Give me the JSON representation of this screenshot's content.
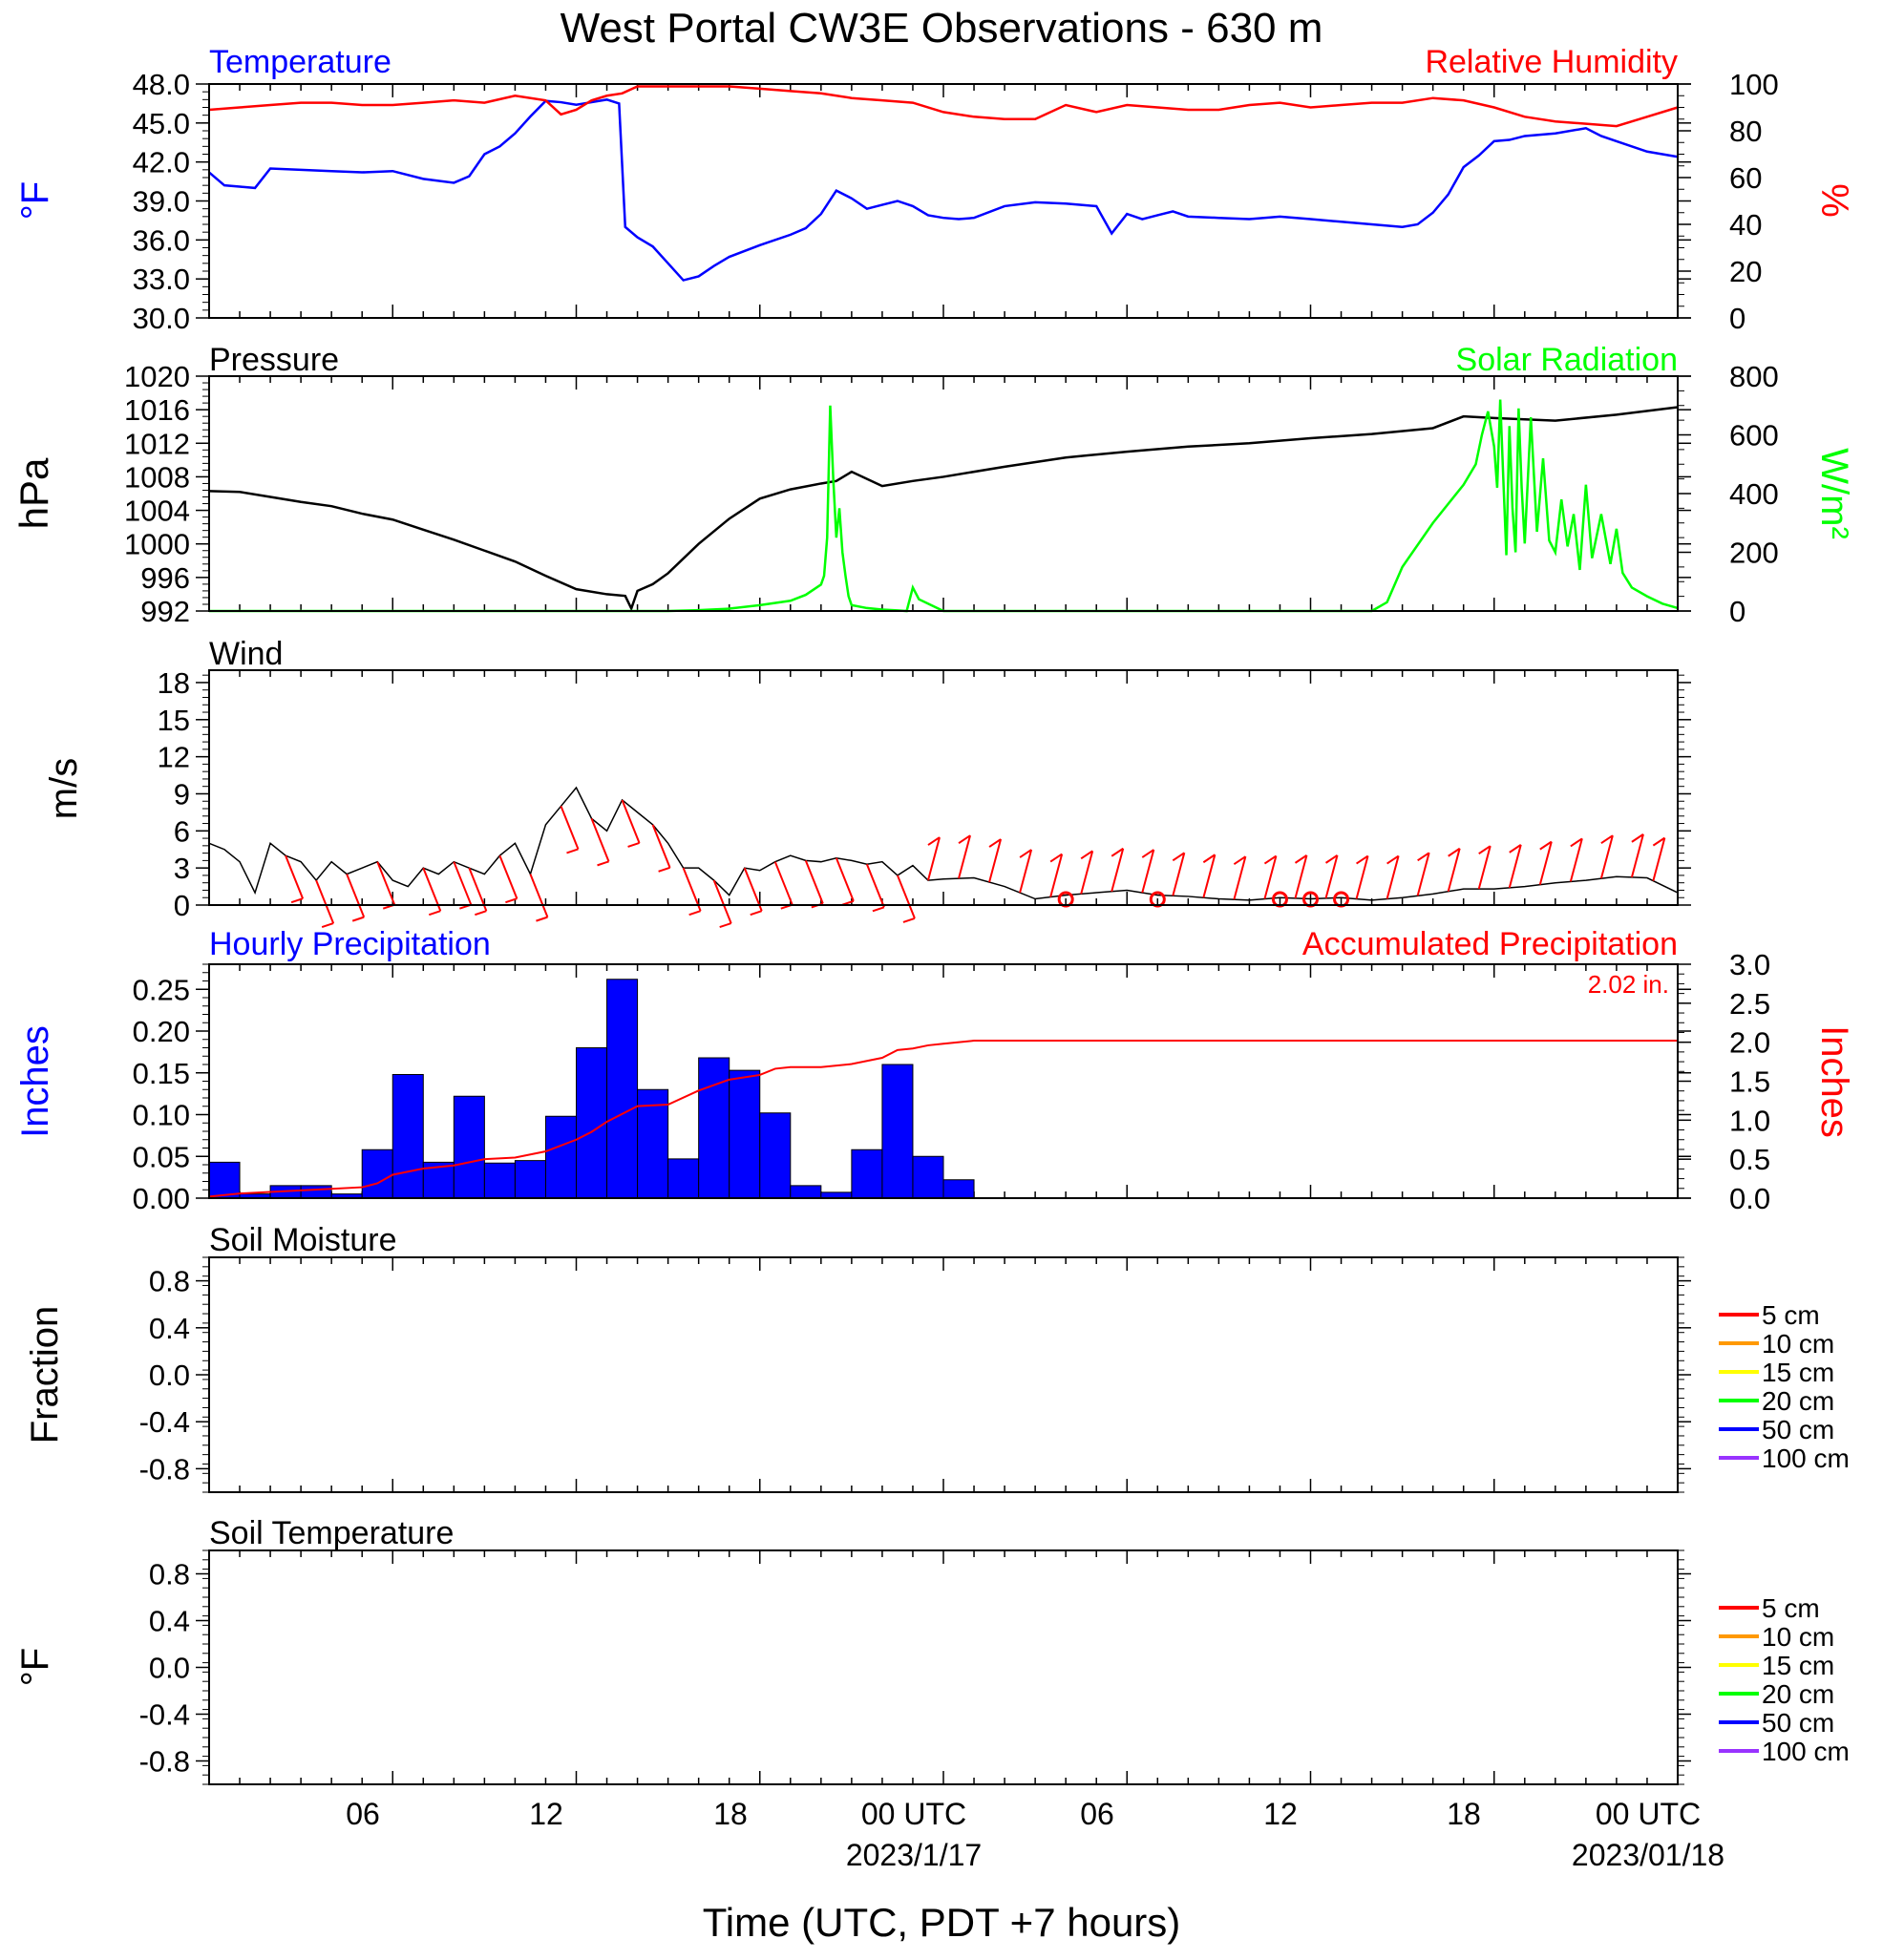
{
  "title": "West Portal CW3E Observations - 630 m",
  "xaxis": {
    "ticks": [
      "06",
      "12",
      "18",
      "00 UTC",
      "06",
      "12",
      "18",
      "00 UTC"
    ],
    "dates": [
      "2023/1/17",
      "2023/01/18"
    ],
    "label": "Time (UTC, PDT +7 hours)"
  },
  "chart_data": [
    {
      "type": "line",
      "name": "temperature-humidity",
      "left_title": "Temperature",
      "right_title": "Relative Humidity",
      "left_unit": "°F",
      "right_unit": "%",
      "left_ticks": [
        "48.0",
        "45.0",
        "42.0",
        "39.0",
        "36.0",
        "33.0",
        "30.0"
      ],
      "right_ticks": [
        "100",
        "80",
        "60",
        "40",
        "20",
        "0"
      ],
      "ylim_left": [
        30,
        48
      ],
      "ylim_right": [
        0,
        100
      ],
      "xlim_hours": [
        0,
        48
      ],
      "series": [
        {
          "name": "Temperature",
          "color": "#0000ff",
          "axis": "left",
          "x": [
            0,
            0.5,
            1,
            1.5,
            2,
            3,
            4,
            5,
            6,
            7,
            8,
            8.5,
            9,
            9.5,
            10,
            10.5,
            11,
            11.5,
            12,
            12.5,
            13,
            13.4,
            13.6,
            14,
            14.5,
            15,
            15.5,
            16,
            16.5,
            17,
            18,
            19,
            19.5,
            20,
            20.5,
            21,
            21.5,
            22,
            22.5,
            23,
            23.5,
            24,
            24.5,
            25,
            26,
            27,
            28,
            29,
            29.5,
            30,
            30.5,
            31,
            31.5,
            32,
            33,
            34,
            35,
            36,
            37,
            38,
            39,
            39.5,
            40,
            40.5,
            41,
            41.5,
            42,
            42.5,
            43,
            44,
            45,
            45.5,
            46,
            47,
            48
          ],
          "y": [
            41.2,
            40.2,
            40.1,
            40.0,
            41.5,
            41.4,
            41.3,
            41.2,
            41.3,
            40.7,
            40.4,
            40.9,
            42.6,
            43.2,
            44.2,
            45.5,
            46.7,
            46.6,
            46.4,
            46.6,
            46.8,
            46.5,
            37.0,
            36.2,
            35.5,
            34.2,
            32.9,
            33.2,
            34.0,
            34.7,
            35.6,
            36.4,
            36.9,
            38.0,
            39.8,
            39.2,
            38.4,
            38.7,
            39.0,
            38.6,
            37.9,
            37.7,
            37.6,
            37.7,
            38.6,
            38.9,
            38.8,
            38.6,
            36.5,
            38.0,
            37.6,
            37.9,
            38.2,
            37.8,
            37.7,
            37.6,
            37.8,
            37.6,
            37.4,
            37.2,
            37.0,
            37.2,
            38.1,
            39.5,
            41.6,
            42.5,
            43.6,
            43.7,
            44.0,
            44.2,
            44.6,
            44.0,
            43.6,
            42.8,
            42.4
          ]
        },
        {
          "name": "Relative Humidity",
          "color": "#ff0000",
          "axis": "right",
          "x": [
            0,
            1,
            2,
            3,
            4,
            5,
            6,
            7,
            8,
            9,
            10,
            11,
            11.5,
            12,
            12.5,
            13,
            13.5,
            14,
            15,
            16,
            17,
            18,
            19,
            20,
            21,
            22,
            23,
            24,
            25,
            26,
            27,
            28,
            29,
            30,
            31,
            32,
            33,
            34,
            35,
            36,
            37,
            38,
            39,
            40,
            41,
            42,
            43,
            44,
            45,
            46,
            47,
            48
          ],
          "y": [
            89,
            90,
            91,
            92,
            92,
            91,
            91,
            92,
            93,
            92,
            95,
            93,
            87,
            89,
            93,
            95,
            96,
            99,
            99,
            99,
            99,
            98,
            97,
            96,
            94,
            93,
            92,
            88,
            86,
            85,
            85,
            91,
            88,
            91,
            90,
            89,
            89,
            91,
            92,
            90,
            91,
            92,
            92,
            94,
            93,
            90,
            86,
            84,
            83,
            82,
            86,
            90
          ]
        }
      ]
    },
    {
      "type": "line",
      "name": "pressure-solar",
      "left_title": "Pressure",
      "right_title": "Solar Radiation",
      "left_unit": "hPa",
      "right_unit": "W/m²",
      "left_ticks": [
        "1020",
        "1016",
        "1012",
        "1008",
        "1004",
        "1000",
        "996",
        "992"
      ],
      "right_ticks": [
        "800",
        "600",
        "400",
        "200",
        "0"
      ],
      "ylim_left": [
        992,
        1020
      ],
      "ylim_right": [
        0,
        800
      ],
      "xlim_hours": [
        0,
        48
      ],
      "series": [
        {
          "name": "Pressure",
          "color": "#000000",
          "axis": "left",
          "x": [
            0,
            1,
            2,
            3,
            4,
            5,
            6,
            7,
            8,
            9,
            10,
            11,
            12,
            13,
            13.6,
            13.8,
            14,
            14.5,
            15,
            16,
            17,
            18,
            19,
            20,
            20.5,
            21,
            22,
            23,
            24,
            26,
            28,
            30,
            32,
            34,
            36,
            38,
            40,
            41,
            42,
            44,
            46,
            48
          ],
          "y": [
            1006.3,
            1006.2,
            1005.6,
            1005.0,
            1004.5,
            1003.6,
            1002.9,
            1001.7,
            1000.5,
            999.2,
            997.9,
            996.2,
            994.6,
            994.0,
            993.8,
            992.3,
            994.4,
            995.2,
            996.5,
            1000.0,
            1003.0,
            1005.4,
            1006.5,
            1007.2,
            1007.5,
            1008.6,
            1006.9,
            1007.5,
            1008.0,
            1009.2,
            1010.3,
            1011.0,
            1011.6,
            1012.0,
            1012.6,
            1013.1,
            1013.8,
            1015.2,
            1015.0,
            1014.7,
            1015.4,
            1016.3
          ]
        },
        {
          "name": "Solar Radiation",
          "color": "#00ff00",
          "axis": "right",
          "x": [
            0,
            14,
            15,
            16,
            17,
            18,
            19,
            19.5,
            20,
            20.1,
            20.2,
            20.3,
            20.4,
            20.5,
            20.6,
            20.7,
            20.8,
            20.9,
            21,
            21.5,
            22,
            22.5,
            22.8,
            23,
            23.2,
            24,
            30,
            36,
            38,
            38.5,
            39,
            40,
            41,
            41.4,
            41.6,
            41.8,
            42,
            42.1,
            42.2,
            42.3,
            42.4,
            42.5,
            42.6,
            42.7,
            42.8,
            42.9,
            43,
            43.2,
            43.4,
            43.6,
            43.8,
            44,
            44.2,
            44.4,
            44.6,
            44.8,
            45,
            45.2,
            45.5,
            45.8,
            46,
            46.2,
            46.5,
            47,
            47.5,
            48
          ],
          "y": [
            0,
            0,
            0,
            3,
            8,
            20,
            35,
            55,
            90,
            120,
            250,
            700,
            450,
            250,
            350,
            200,
            120,
            50,
            20,
            10,
            5,
            2,
            0,
            80,
            40,
            0,
            0,
            0,
            0,
            30,
            150,
            300,
            430,
            500,
            600,
            680,
            560,
            420,
            720,
            450,
            190,
            630,
            350,
            200,
            690,
            420,
            230,
            660,
            270,
            520,
            240,
            200,
            380,
            220,
            330,
            140,
            430,
            180,
            330,
            160,
            280,
            130,
            80,
            50,
            25,
            10
          ]
        }
      ]
    },
    {
      "type": "line",
      "name": "wind",
      "title": "Wind",
      "left_unit": "m/s",
      "left_ticks": [
        "18",
        "15",
        "12",
        "9",
        "6",
        "3",
        "0"
      ],
      "ylim_left": [
        0,
        19
      ],
      "xlim_hours": [
        0,
        48
      ],
      "series": [
        {
          "name": "Wind speed",
          "color": "#000000",
          "axis": "left",
          "x": [
            0,
            0.5,
            1,
            1.5,
            2,
            2.5,
            3,
            3.5,
            4,
            4.5,
            5,
            5.5,
            6,
            6.5,
            7,
            7.5,
            8,
            8.5,
            9,
            9.5,
            10,
            10.5,
            11,
            11.5,
            12,
            12.5,
            13,
            13.5,
            14,
            14.5,
            15,
            15.5,
            16,
            16.5,
            17,
            17.5,
            18,
            18.5,
            19,
            19.5,
            20,
            20.5,
            21,
            21.5,
            22,
            22.5,
            23,
            23.5,
            24,
            25,
            26,
            27,
            28,
            29,
            30,
            31,
            32,
            33,
            34,
            35,
            36,
            37,
            38,
            39,
            40,
            41,
            42,
            43,
            44,
            45,
            46,
            47,
            48
          ],
          "y": [
            5.0,
            4.5,
            3.5,
            1.0,
            5.0,
            4.0,
            3.5,
            2.0,
            3.5,
            2.5,
            3.0,
            3.5,
            2.0,
            1.5,
            3.0,
            2.5,
            3.5,
            3.0,
            2.5,
            4.0,
            5.0,
            2.5,
            6.5,
            8.0,
            9.5,
            7.0,
            6.0,
            8.5,
            7.5,
            6.5,
            5.0,
            3.0,
            3.0,
            2.0,
            0.8,
            3.0,
            2.8,
            3.5,
            4.0,
            3.6,
            3.5,
            3.8,
            3.6,
            3.3,
            3.5,
            2.4,
            3.2,
            2.0,
            2.1,
            2.2,
            1.5,
            0.5,
            0.8,
            1.0,
            1.2,
            0.8,
            0.7,
            0.5,
            0.4,
            0.6,
            0.5,
            0.6,
            0.4,
            0.6,
            0.9,
            1.3,
            1.3,
            1.5,
            1.8,
            2.0,
            2.3,
            2.2,
            1.0
          ]
        }
      ],
      "barbs_hours": [
        2.5,
        3.5,
        4.5,
        5.5,
        7,
        8,
        8.5,
        9.5,
        10.5,
        11.5,
        12.5,
        13.5,
        14.5,
        15.5,
        16.5,
        17.5,
        18.5,
        19.5,
        20.5,
        21.5,
        22.5,
        23.5,
        24.5,
        25.5,
        26.5,
        27.5,
        28.5,
        29.5,
        30.5,
        31.5,
        32.5,
        33.5,
        34.5,
        35.5,
        36.5,
        37.5,
        38.5,
        39.5,
        40.5,
        41.5,
        42.5,
        43.5,
        44.5,
        45.5,
        46.5,
        47.2
      ],
      "calm_hours": [
        28,
        31,
        35,
        36,
        37
      ]
    },
    {
      "type": "bar",
      "name": "precipitation",
      "left_title": "Hourly Precipitation",
      "right_title": "Accumulated Precipitation",
      "total_label": "2.02 in.",
      "left_unit": "Inches",
      "right_unit": "Inches",
      "left_ticks": [
        "0.25",
        "0.20",
        "0.15",
        "0.10",
        "0.05",
        "0.00"
      ],
      "right_ticks": [
        "3.0",
        "2.5",
        "2.0",
        "1.5",
        "1.0",
        "0.5",
        "0.0"
      ],
      "ylim_left": [
        0,
        0.28
      ],
      "ylim_right": [
        0,
        3.0
      ],
      "xlim_hours": [
        0,
        48
      ],
      "bar_color": "#0000ff",
      "bars": [
        {
          "hour": 0,
          "value": 0.043
        },
        {
          "hour": 1,
          "value": 0.005
        },
        {
          "hour": 2,
          "value": 0.015
        },
        {
          "hour": 3,
          "value": 0.015
        },
        {
          "hour": 4,
          "value": 0.005
        },
        {
          "hour": 5,
          "value": 0.058
        },
        {
          "hour": 6,
          "value": 0.148
        },
        {
          "hour": 7,
          "value": 0.043
        },
        {
          "hour": 8,
          "value": 0.122
        },
        {
          "hour": 9,
          "value": 0.042
        },
        {
          "hour": 10,
          "value": 0.045
        },
        {
          "hour": 11,
          "value": 0.098
        },
        {
          "hour": 12,
          "value": 0.18
        },
        {
          "hour": 13,
          "value": 0.262
        },
        {
          "hour": 14,
          "value": 0.13
        },
        {
          "hour": 15,
          "value": 0.047
        },
        {
          "hour": 16,
          "value": 0.168
        },
        {
          "hour": 17,
          "value": 0.153
        },
        {
          "hour": 18,
          "value": 0.102
        },
        {
          "hour": 19,
          "value": 0.015
        },
        {
          "hour": 20,
          "value": 0.007
        },
        {
          "hour": 21,
          "value": 0.058
        },
        {
          "hour": 22,
          "value": 0.16
        },
        {
          "hour": 23,
          "value": 0.05
        },
        {
          "hour": 24,
          "value": 0.022
        }
      ],
      "accum_color": "#ff0000",
      "accum_x": [
        0,
        1,
        2,
        3,
        4,
        5,
        5.5,
        6,
        7,
        8,
        9,
        10,
        11,
        12,
        12.5,
        13,
        14,
        15,
        16,
        17,
        18,
        18.5,
        19,
        20,
        21,
        22,
        22.5,
        23,
        23.5,
        24,
        25,
        48
      ],
      "accum_y": [
        0.02,
        0.06,
        0.08,
        0.1,
        0.12,
        0.14,
        0.19,
        0.3,
        0.38,
        0.42,
        0.5,
        0.52,
        0.6,
        0.75,
        0.85,
        0.98,
        1.18,
        1.2,
        1.38,
        1.52,
        1.58,
        1.66,
        1.68,
        1.68,
        1.72,
        1.8,
        1.9,
        1.92,
        1.96,
        1.98,
        2.02,
        2.02
      ]
    },
    {
      "type": "line",
      "name": "soil-moisture",
      "title": "Soil Moisture",
      "left_unit": "Fraction",
      "left_ticks": [
        "0.8",
        "0.4",
        "0.0",
        "-0.4",
        "-0.8"
      ],
      "ylim_left": [
        -1,
        1
      ],
      "xlim_hours": [
        0,
        48
      ],
      "series": [],
      "legend": [
        {
          "label": "5 cm",
          "color": "#ff0000"
        },
        {
          "label": "10 cm",
          "color": "#ff9900"
        },
        {
          "label": "15 cm",
          "color": "#ffff00"
        },
        {
          "label": "20 cm",
          "color": "#00ff00"
        },
        {
          "label": "50 cm",
          "color": "#0000ff"
        },
        {
          "label": "100 cm",
          "color": "#9933ff"
        }
      ]
    },
    {
      "type": "line",
      "name": "soil-temperature",
      "title": "Soil Temperature",
      "left_unit": "°F",
      "left_ticks": [
        "0.8",
        "0.4",
        "0.0",
        "-0.4",
        "-0.8"
      ],
      "ylim_left": [
        -1,
        1
      ],
      "xlim_hours": [
        0,
        48
      ],
      "series": [],
      "legend": [
        {
          "label": "5 cm",
          "color": "#ff0000"
        },
        {
          "label": "10 cm",
          "color": "#ff9900"
        },
        {
          "label": "15 cm",
          "color": "#ffff00"
        },
        {
          "label": "20 cm",
          "color": "#00ff00"
        },
        {
          "label": "50 cm",
          "color": "#0000ff"
        },
        {
          "label": "100 cm",
          "color": "#9933ff"
        }
      ]
    }
  ]
}
